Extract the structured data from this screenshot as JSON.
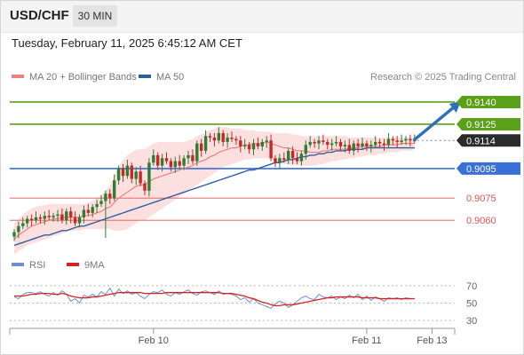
{
  "header": {
    "symbol": "USD/CHF",
    "timeframe": "30 MIN"
  },
  "datetime": "Tuesday, February 11, 2025 6:45:12 AM CET",
  "copyright": "Research © 2025 Trading Central",
  "colors": {
    "bull": "#2e7d32",
    "bear": "#c62828",
    "ma20": "#f08080",
    "band_fill": "#fbdada",
    "ma50": "#2f5f9e",
    "support": "#3a6fd8",
    "resistance": "#5aa019",
    "target_red": "#e05555",
    "arrow": "#2d6fb8",
    "rsi": "#6b8fd6",
    "rsi_ma": "#d62222",
    "current_box": "#2b2b2b"
  },
  "chart_data": [
    {
      "type": "candlestick",
      "legend": [
        {
          "label": "MA 20 + Bollinger Bands",
          "color": "#f08080"
        },
        {
          "label": "MA 50",
          "color": "#2f5f9e"
        }
      ],
      "ylim": [
        9041.5,
        9149
      ],
      "x_ticks": [
        {
          "label": "Feb 10",
          "index": 32
        },
        {
          "label": "Feb 11",
          "index": 81
        },
        {
          "label": "Feb 13",
          "index": 96
        }
      ],
      "levels": [
        {
          "value": 9140,
          "label": "0.9140",
          "kind": "resistance",
          "box": true
        },
        {
          "value": 9125,
          "label": "0.9125",
          "kind": "resistance",
          "box": true
        },
        {
          "value": 9114,
          "label": "0.9114",
          "kind": "current",
          "box": true
        },
        {
          "value": 9095,
          "label": "0.9095",
          "kind": "support",
          "box": true
        },
        {
          "value": 9075,
          "label": "0.9075",
          "kind": "target",
          "box": false
        },
        {
          "value": 9060,
          "label": "0.9060",
          "kind": "target",
          "box": false
        }
      ],
      "closes": [
        9052,
        9056,
        9058,
        9061,
        9060,
        9062,
        9061,
        9063,
        9062,
        9063,
        9064,
        9060,
        9066,
        9062,
        9058,
        9062,
        9067,
        9065,
        9069,
        9071,
        9073,
        9078,
        9075,
        9087,
        9095,
        9090,
        9097,
        9088,
        9093,
        9085,
        9080,
        9099,
        9104,
        9097,
        9102,
        9100,
        9096,
        9100,
        9097,
        9102,
        9104,
        9100,
        9112,
        9107,
        9117,
        9116,
        9114,
        9119,
        9113,
        9116,
        9115,
        9114,
        9110,
        9111,
        9108,
        9112,
        9110,
        9113,
        9114,
        9102,
        9099,
        9102,
        9101,
        9107,
        9102,
        9100,
        9105,
        9111,
        9113,
        9112,
        9114,
        9113,
        9111,
        9112,
        9113,
        9110,
        9111,
        9107,
        9112,
        9110,
        9112,
        9110,
        9111,
        9113,
        9112,
        9111,
        9115,
        9114,
        9113,
        9114,
        9115,
        9114,
        9114
      ],
      "ma20": [
        9047,
        9050,
        9052,
        9054,
        9056,
        9057,
        9058,
        9059,
        9060,
        9061,
        9061,
        9062,
        9062,
        9062,
        9062,
        9062,
        9063,
        9063,
        9064,
        9065,
        9066,
        9068,
        9069,
        9072,
        9075,
        9077,
        9079,
        9081,
        9083,
        9084,
        9084,
        9086,
        9088,
        9089,
        9090,
        9091,
        9092,
        9093,
        9094,
        9095,
        9096,
        9097,
        9099,
        9100,
        9101,
        9103,
        9104,
        9106,
        9107,
        9108,
        9109,
        9109,
        9110,
        9111,
        9111,
        9112,
        9112,
        9112,
        9113,
        9112,
        9111,
        9110,
        9109,
        9109,
        9108,
        9107,
        9107,
        9107,
        9106,
        9106,
        9106,
        9107,
        9107,
        9108,
        9108,
        9108,
        9108,
        9109,
        9109,
        9109,
        9110,
        9110,
        9110,
        9110,
        9110,
        9111,
        9111,
        9111,
        9111,
        9112,
        9112,
        9112,
        9112
      ],
      "band_upper": [
        9058,
        9061,
        9064,
        9066,
        9068,
        9069,
        9070,
        9070,
        9071,
        9071,
        9071,
        9071,
        9071,
        9071,
        9071,
        9071,
        9071,
        9072,
        9073,
        9075,
        9077,
        9081,
        9083,
        9090,
        9097,
        9101,
        9104,
        9106,
        9108,
        9108,
        9108,
        9110,
        9112,
        9113,
        9113,
        9113,
        9113,
        9113,
        9113,
        9113,
        9114,
        9115,
        9117,
        9118,
        9120,
        9121,
        9122,
        9123,
        9123,
        9123,
        9122,
        9122,
        9122,
        9121,
        9121,
        9121,
        9120,
        9120,
        9120,
        9120,
        9119,
        9119,
        9119,
        9119,
        9118,
        9118,
        9117,
        9117,
        9117,
        9117,
        9117,
        9117,
        9117,
        9117,
        9117,
        9117,
        9117,
        9116,
        9116,
        9116,
        9116,
        9116,
        9116,
        9116,
        9116,
        9116,
        9116,
        9116,
        9116,
        9116,
        9116,
        9116,
        9116
      ],
      "band_lower": [
        9037,
        9039,
        9041,
        9043,
        9044,
        9045,
        9046,
        9047,
        9048,
        9049,
        9050,
        9051,
        9052,
        9053,
        9053,
        9053,
        9054,
        9054,
        9054,
        9054,
        9054,
        9054,
        9054,
        9053,
        9053,
        9053,
        9054,
        9056,
        9058,
        9060,
        9060,
        9062,
        9064,
        9066,
        9068,
        9070,
        9072,
        9074,
        9076,
        9078,
        9080,
        9082,
        9084,
        9086,
        9088,
        9090,
        9092,
        9094,
        9096,
        9097,
        9098,
        9099,
        9100,
        9101,
        9101,
        9102,
        9102,
        9102,
        9102,
        9101,
        9100,
        9099,
        9098,
        9098,
        9097,
        9097,
        9097,
        9097,
        9097,
        9097,
        9098,
        9098,
        9099,
        9100,
        9100,
        9101,
        9101,
        9102,
        9102,
        9103,
        9103,
        9104,
        9104,
        9104,
        9105,
        9105,
        9106,
        9106,
        9106,
        9107,
        9107,
        9107,
        9108
      ],
      "ma50": [
        9043,
        9044,
        9045,
        9046,
        9047,
        9048,
        9049,
        9050,
        9050,
        9051,
        9052,
        9053,
        9053,
        9054,
        9055,
        9056,
        9056,
        9057,
        9058,
        9059,
        9060,
        9061,
        9062,
        9063,
        9064,
        9065,
        9066,
        9067,
        9068,
        9069,
        9070,
        9071,
        9072,
        9073,
        9074,
        9075,
        9076,
        9077,
        9078,
        9079,
        9080,
        9081,
        9082,
        9083,
        9084,
        9085,
        9086,
        9087,
        9088,
        9089,
        9090,
        9091,
        9092,
        9093,
        9094,
        9094,
        9095,
        9096,
        9097,
        9098,
        9099,
        9099,
        9100,
        9101,
        9101,
        9102,
        9103,
        9103,
        9104,
        9104,
        9105,
        9105,
        9106,
        9106,
        9107,
        9107,
        9107,
        9108,
        9108,
        9108,
        9108,
        9109,
        9109,
        9109,
        9109,
        9109,
        9109,
        9109,
        9109,
        9109,
        9109,
        9109,
        9109
      ],
      "arrow": {
        "from": {
          "index": 92,
          "value": 9114
        },
        "to": {
          "index": 102,
          "value": 9140
        }
      }
    },
    {
      "type": "line",
      "legend": [
        {
          "label": "RSI",
          "color": "#6b8fd6"
        },
        {
          "label": "9MA",
          "color": "#d62222"
        }
      ],
      "ylim": [
        25,
        80
      ],
      "y_ticks": [
        {
          "value": 70,
          "label": "70"
        },
        {
          "value": 50,
          "label": "50"
        },
        {
          "value": 30,
          "label": "30"
        }
      ],
      "rsi": [
        57,
        55,
        60,
        62,
        62,
        61,
        63,
        60,
        58,
        62,
        59,
        64,
        60,
        52,
        55,
        50,
        59,
        57,
        60,
        57,
        63,
        60,
        67,
        58,
        66,
        61,
        64,
        60,
        62,
        58,
        55,
        60,
        63,
        62,
        65,
        60,
        58,
        62,
        60,
        63,
        65,
        61,
        59,
        63,
        64,
        62,
        60,
        64,
        60,
        61,
        60,
        58,
        54,
        56,
        51,
        55,
        50,
        48,
        46,
        44,
        49,
        52,
        50,
        45,
        48,
        52,
        56,
        58,
        55,
        54,
        60,
        57,
        56,
        58,
        54,
        57,
        55,
        59,
        56,
        60,
        54,
        58,
        53,
        57,
        55,
        52,
        56,
        55,
        56,
        54,
        56,
        55,
        55
      ],
      "rsi_ma": [
        58,
        58,
        58,
        59,
        60,
        60,
        61,
        61,
        61,
        60,
        60,
        61,
        60,
        58,
        57,
        56,
        56,
        56,
        57,
        57,
        58,
        59,
        60,
        61,
        62,
        62,
        62,
        62,
        62,
        62,
        61,
        61,
        61,
        61,
        61,
        62,
        62,
        62,
        62,
        62,
        62,
        62,
        62,
        62,
        62,
        62,
        62,
        62,
        61,
        61,
        61,
        60,
        59,
        58,
        56,
        55,
        53,
        51,
        50,
        48,
        47,
        47,
        48,
        48,
        48,
        49,
        50,
        51,
        52,
        53,
        54,
        55,
        56,
        56,
        57,
        57,
        57,
        57,
        57,
        57,
        56,
        56,
        56,
        56,
        55,
        55,
        55,
        55,
        55,
        55,
        55,
        55,
        55
      ]
    }
  ]
}
